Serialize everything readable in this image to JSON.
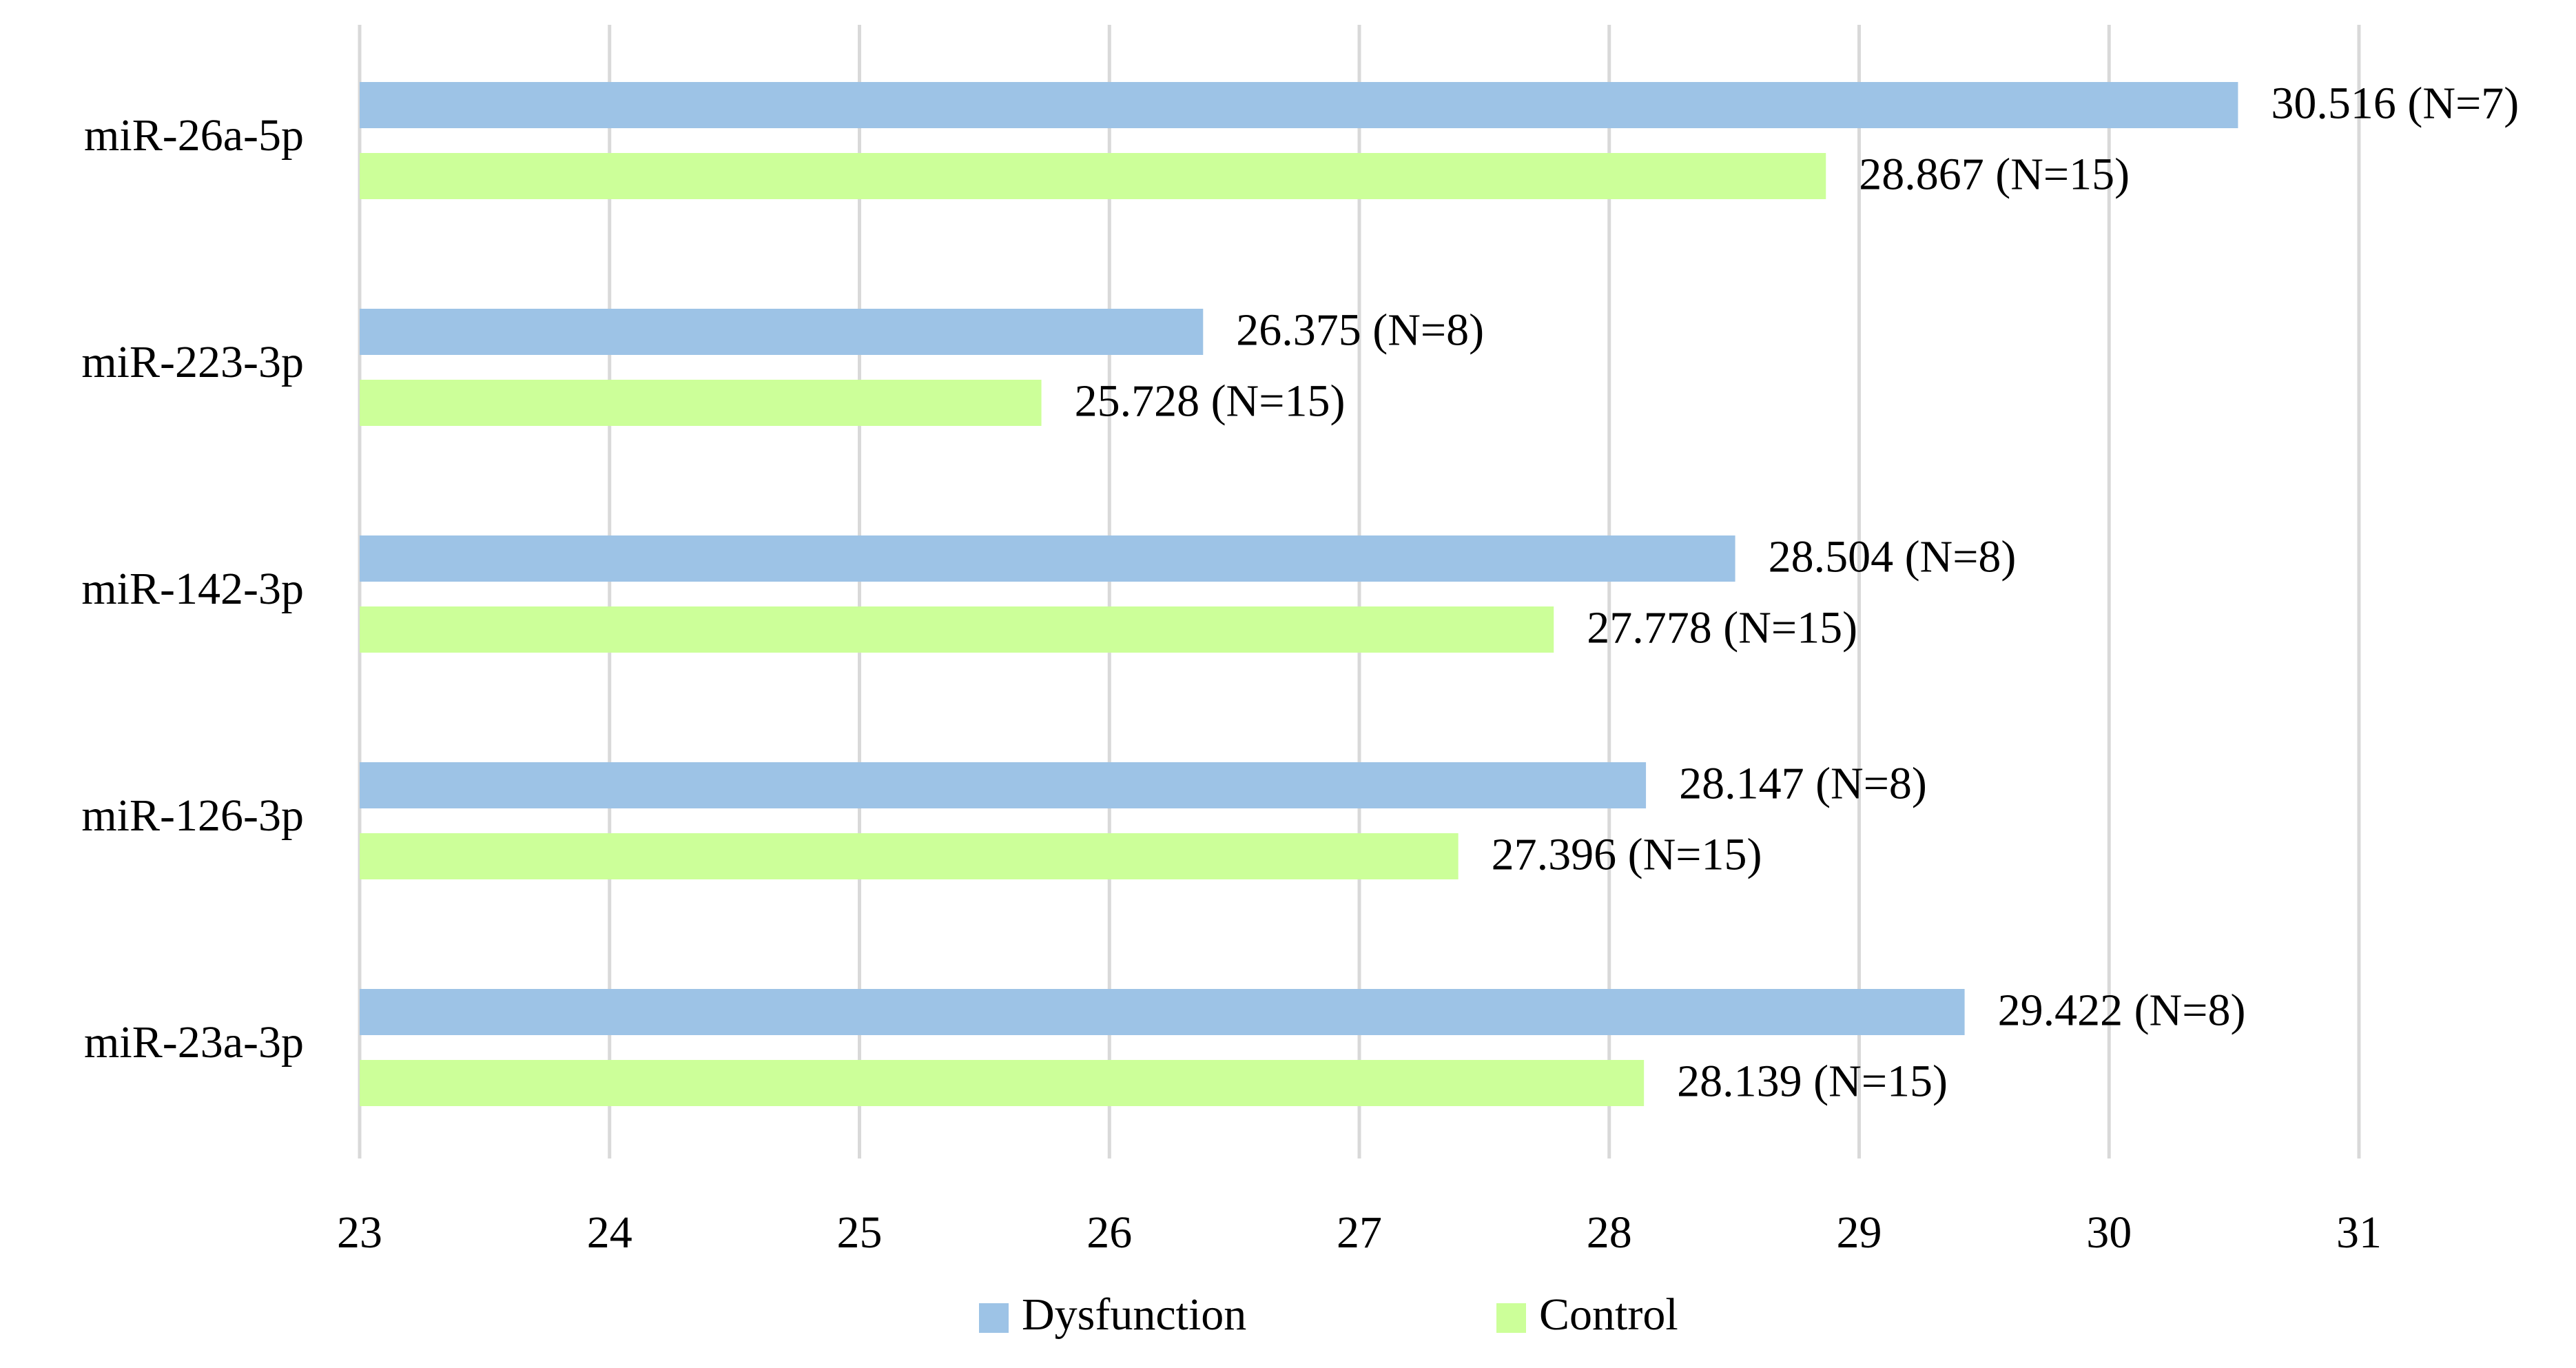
{
  "chart_data": {
    "type": "bar",
    "orientation": "horizontal",
    "categories": [
      "miR-26a-5p",
      "miR-223-3p",
      "miR-142-3p",
      "miR-126-3p",
      "miR-23a-3p"
    ],
    "series": [
      {
        "name": "Dysfunction",
        "color": "#9dc3e6",
        "values": [
          30.516,
          26.375,
          28.504,
          28.147,
          29.422
        ],
        "value_labels": [
          "30.516 (N=7)",
          "26.375 (N=8)",
          "28.504 (N=8)",
          "28.147 (N=8)",
          "29.422 (N=8)"
        ]
      },
      {
        "name": "Control",
        "color": "#ccff99",
        "values": [
          28.867,
          25.728,
          27.778,
          27.396,
          28.139
        ],
        "value_labels": [
          "28.867 (N=15)",
          "25.728 (N=15)",
          "27.778 (N=15)",
          "27.396 (N=15)",
          "28.139 (N=15)"
        ]
      }
    ],
    "xlim": [
      23,
      31
    ],
    "xticks": [
      23,
      24,
      25,
      26,
      27,
      28,
      29,
      30,
      31
    ],
    "grid": true,
    "legend": "bottom"
  }
}
